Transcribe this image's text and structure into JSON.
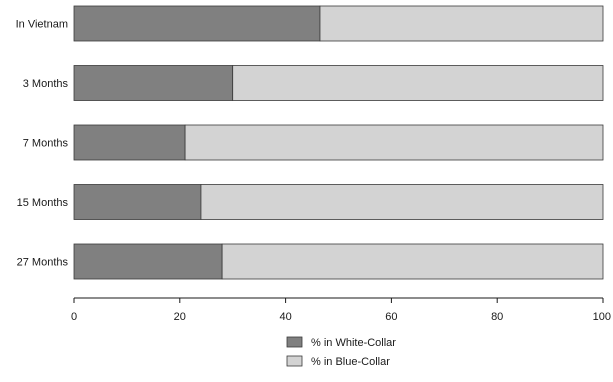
{
  "chart_data": {
    "type": "bar",
    "stacked": true,
    "orientation": "horizontal",
    "categories": [
      "In Vietnam",
      "3 Months",
      "7 Months",
      "15 Months",
      "27 Months"
    ],
    "series": [
      {
        "name": "% in White-Collar",
        "values": [
          46.5,
          30,
          21,
          24,
          28
        ],
        "color": "#808080"
      },
      {
        "name": "% in Blue-Collar",
        "values": [
          53.5,
          70,
          79,
          76,
          72
        ],
        "color": "#d3d3d3"
      }
    ],
    "xlim": [
      0,
      100
    ],
    "xticks": [
      0,
      20,
      40,
      60,
      80,
      100
    ],
    "tick_labels": [
      "0",
      "20",
      "40",
      "60",
      "80",
      "100"
    ],
    "grid": false,
    "legend_position": "bottom"
  }
}
